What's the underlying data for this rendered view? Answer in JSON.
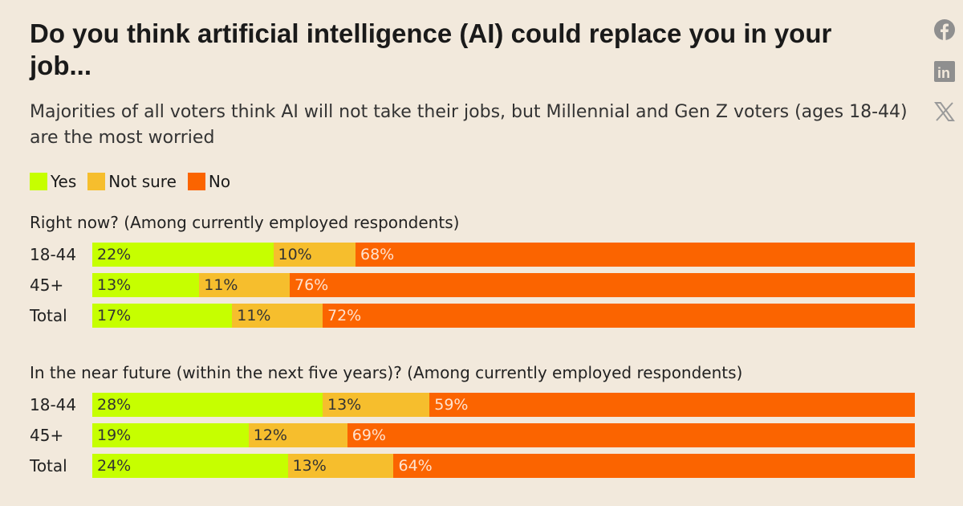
{
  "title": "Do you think artificial intelligence (AI) could replace you in your job...",
  "subtitle": "Majorities of all voters think AI will not take their jobs, but Millennial and Gen Z voters (ages 18-44) are the most worried",
  "social": [
    "facebook-icon",
    "linkedin-icon",
    "x-icon"
  ],
  "colors": {
    "yes": "#c6ff00",
    "not_sure": "#f6be2d",
    "no": "#fb6400"
  },
  "chart_data": {
    "type": "bar",
    "stacked": true,
    "orientation": "horizontal",
    "legend": {
      "position": "top-left",
      "entries": [
        "Yes",
        "Not sure",
        "No"
      ]
    },
    "panels": [
      {
        "title": "Right now? (Among currently employed respondents)",
        "categories": [
          "18-44",
          "45+",
          "Total"
        ],
        "series": [
          {
            "name": "Yes",
            "values": [
              22,
              13,
              17
            ]
          },
          {
            "name": "Not sure",
            "values": [
              10,
              11,
              11
            ]
          },
          {
            "name": "No",
            "values": [
              68,
              76,
              72
            ]
          }
        ]
      },
      {
        "title": "In the near future (within the next five years)? (Among currently employed respondents)",
        "categories": [
          "18-44",
          "45+",
          "Total"
        ],
        "series": [
          {
            "name": "Yes",
            "values": [
              28,
              19,
              24
            ]
          },
          {
            "name": "Not sure",
            "values": [
              13,
              12,
              13
            ]
          },
          {
            "name": "No",
            "values": [
              59,
              69,
              64
            ]
          }
        ]
      }
    ]
  }
}
